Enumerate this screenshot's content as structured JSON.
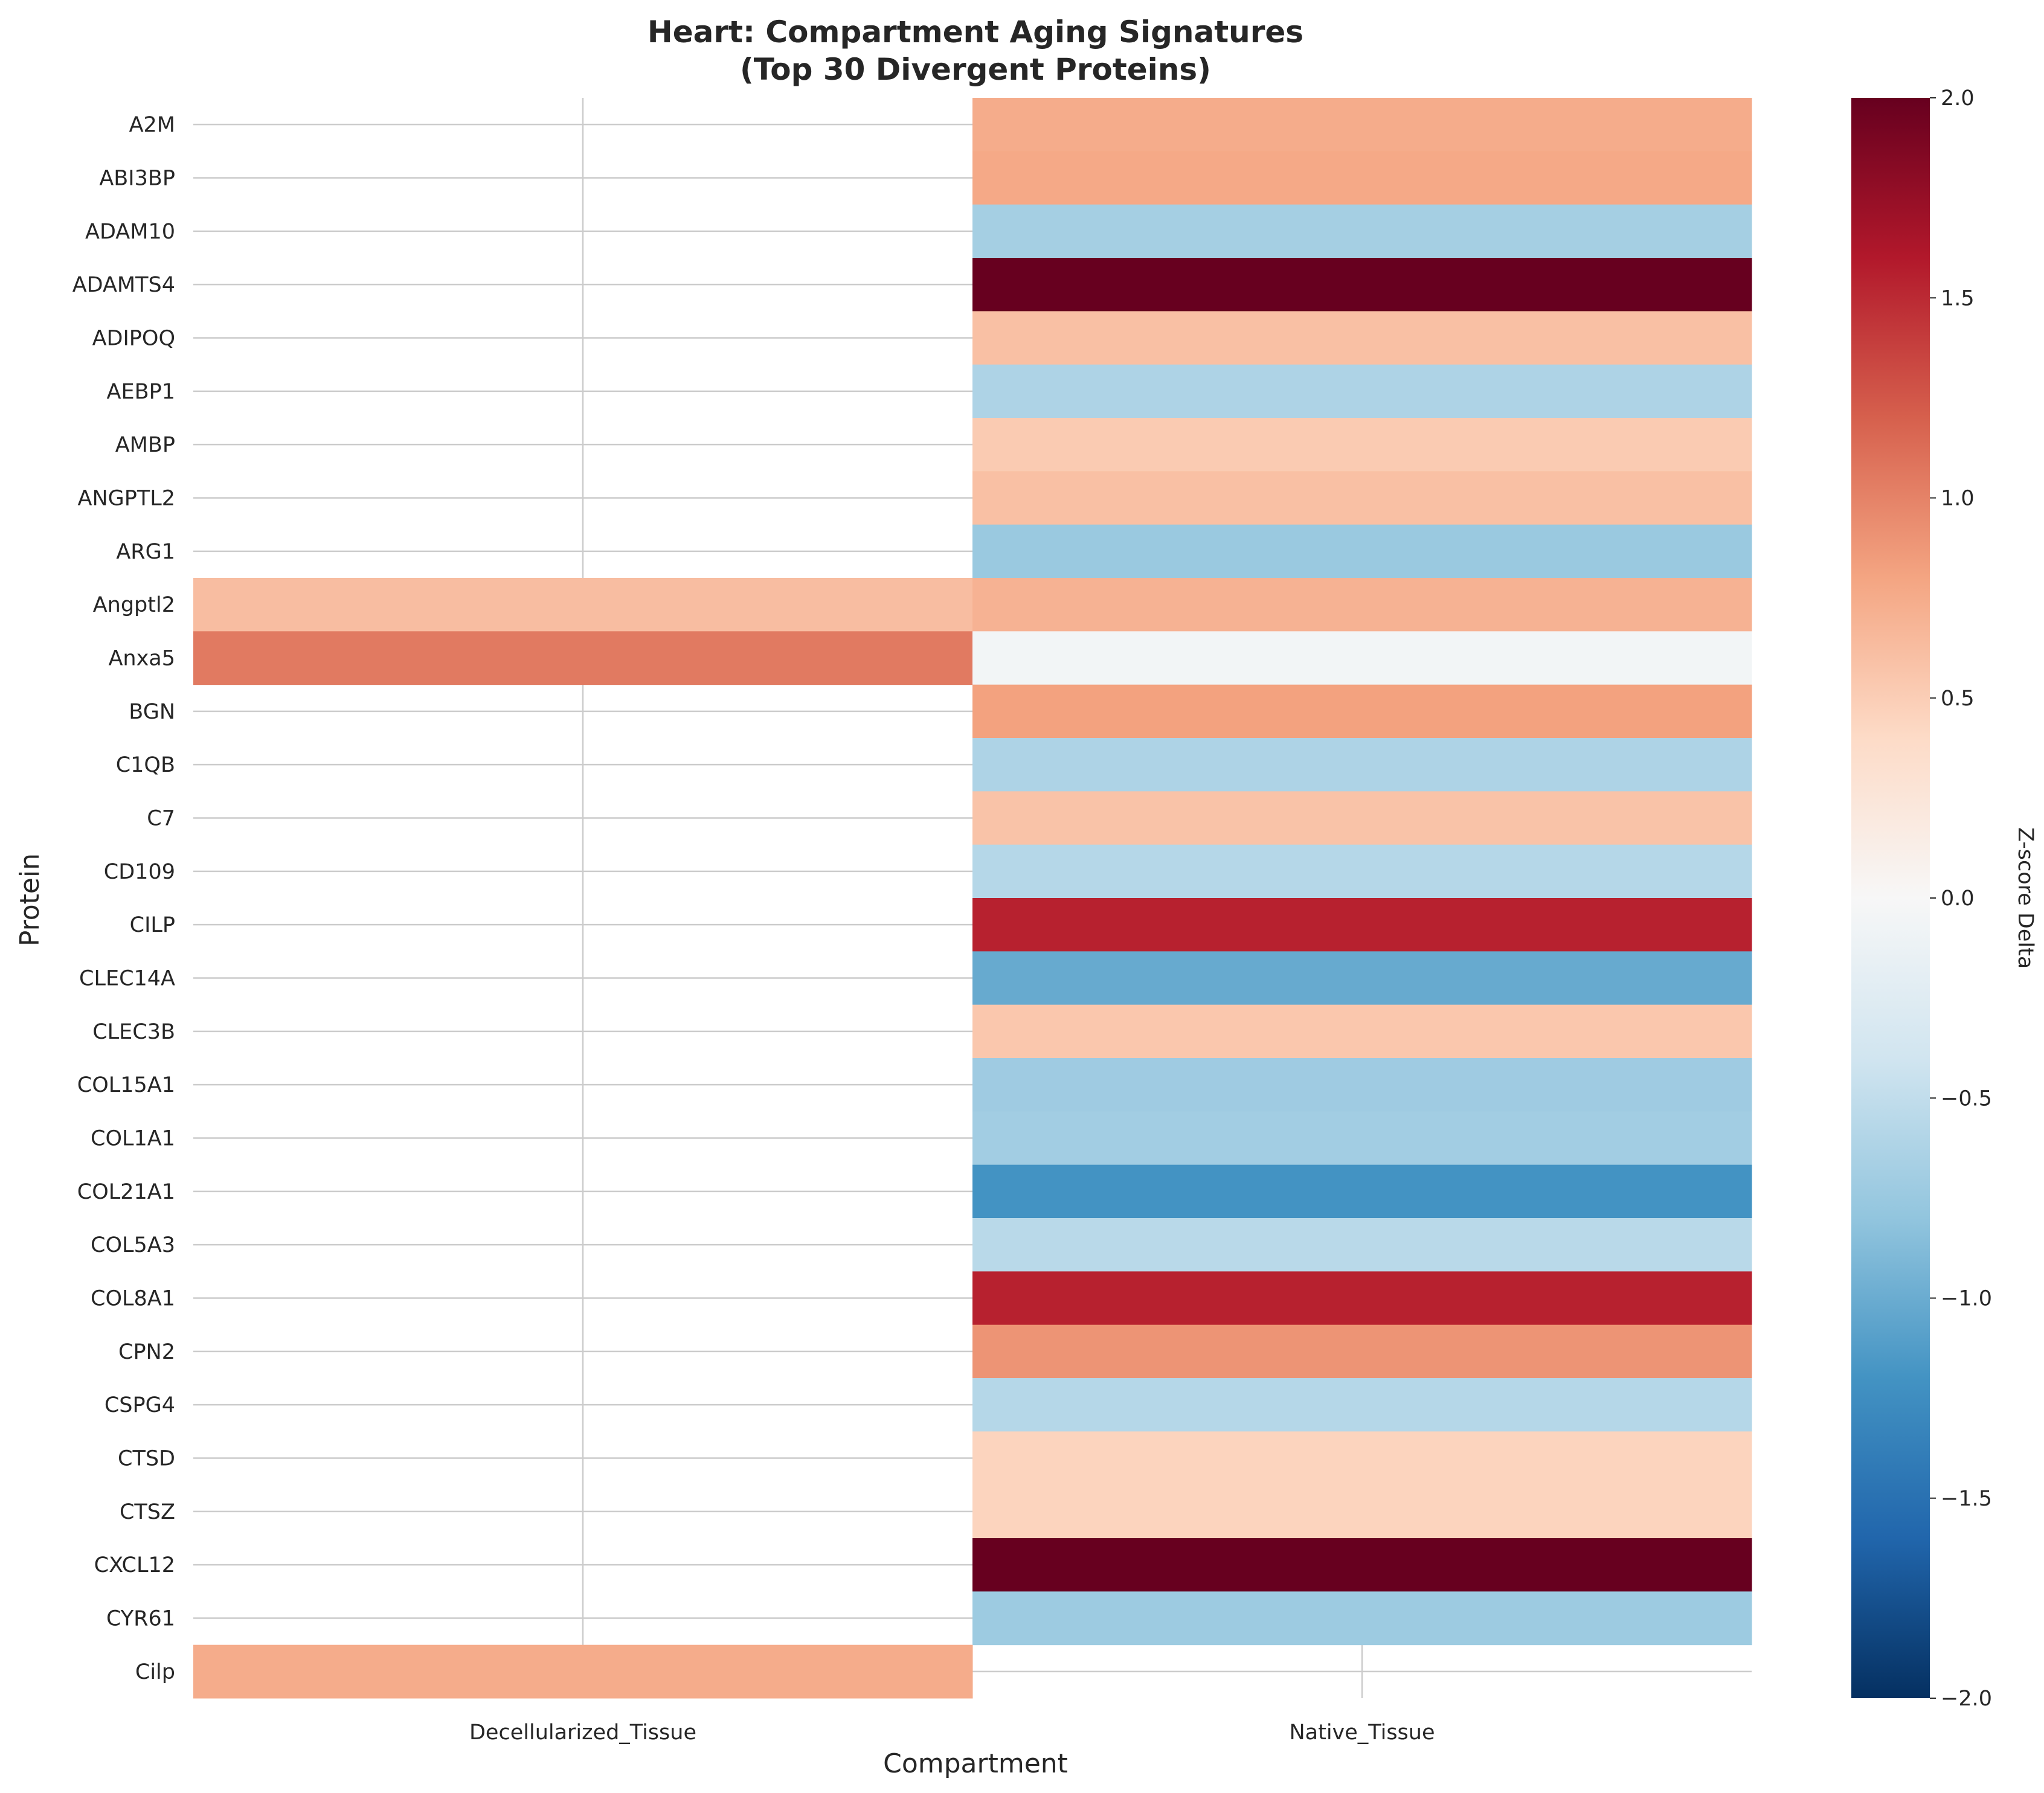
{
  "chart_data": {
    "type": "heatmap",
    "title": "Heart: Compartment Aging Signatures\n(Top 30 Divergent Proteins)",
    "xlabel": "Compartment",
    "ylabel": "Protein",
    "colorbar_label": "Z-score Delta",
    "colormap": "RdBu_r",
    "vmin": -2.0,
    "vmax": 2.0,
    "colorbar_ticks": [
      2.0,
      1.5,
      1.0,
      0.5,
      0.0,
      -0.5,
      -1.0,
      -1.5,
      -2.0
    ],
    "colorbar_tick_labels": [
      "2.0",
      "1.5",
      "1.0",
      "0.5",
      "0.0",
      "−0.5",
      "−1.0",
      "−1.5",
      "−2.0"
    ],
    "grid": true,
    "columns": [
      "Decellularized_Tissue",
      "Native_Tissue"
    ],
    "rows": [
      "A2M",
      "ABI3BP",
      "ADAM10",
      "ADAMTS4",
      "ADIPOQ",
      "AEBP1",
      "AMBP",
      "ANGPTL2",
      "ARG1",
      "Angptl2",
      "Anxa5",
      "BGN",
      "C1QB",
      "C7",
      "CD109",
      "CILP",
      "CLEC14A",
      "CLEC3B",
      "COL15A1",
      "COL1A1",
      "COL21A1",
      "COL5A3",
      "COL8A1",
      "CPN2",
      "CSPG4",
      "CTSD",
      "CTSZ",
      "CXCL12",
      "CYR61",
      "Cilp"
    ],
    "values": [
      [
        null,
        0.75
      ],
      [
        null,
        0.77
      ],
      [
        null,
        -0.68
      ],
      [
        null,
        2.0
      ],
      [
        null,
        0.6
      ],
      [
        null,
        -0.62
      ],
      [
        null,
        0.52
      ],
      [
        null,
        0.6
      ],
      [
        null,
        -0.75
      ],
      [
        0.62,
        0.7
      ],
      [
        1.05,
        -0.05
      ],
      [
        null,
        0.82
      ],
      [
        null,
        -0.62
      ],
      [
        null,
        0.58
      ],
      [
        null,
        -0.58
      ],
      [
        null,
        1.55
      ],
      [
        null,
        -1.02
      ],
      [
        null,
        0.55
      ],
      [
        null,
        -0.72
      ],
      [
        null,
        -0.7
      ],
      [
        null,
        -1.2
      ],
      [
        null,
        -0.55
      ],
      [
        null,
        1.55
      ],
      [
        null,
        0.9
      ],
      [
        null,
        -0.58
      ],
      [
        null,
        0.45
      ],
      [
        null,
        0.45
      ],
      [
        null,
        2.0
      ],
      [
        null,
        -0.73
      ],
      [
        0.75,
        null
      ]
    ]
  }
}
